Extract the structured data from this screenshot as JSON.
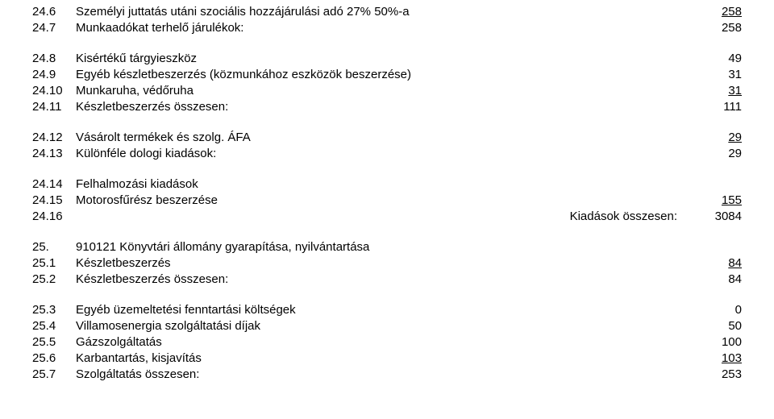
{
  "rows": [
    {
      "no": "24.6",
      "text": "Személyi juttatás utáni szociális hozzájárulási adó 27% 50%-a",
      "value": "258",
      "underline": true
    },
    {
      "no": "24.7",
      "text": "Munkaadókat terhelő járulékok:",
      "value": "258"
    },
    {
      "spacer": true
    },
    {
      "no": "24.8",
      "text": "Kisértékű tárgyieszköz",
      "value": "49"
    },
    {
      "no": "24.9",
      "text": "Egyéb készletbeszerzés (közmunkához eszközök beszerzése)",
      "value": "31"
    },
    {
      "no": "24.10",
      "text": "Munkaruha, védőruha",
      "value": "31",
      "underline": true
    },
    {
      "no": "24.11",
      "text": "Készletbeszerzés összesen:",
      "value": "111"
    },
    {
      "spacer": true
    },
    {
      "no": "24.12",
      "text": "Vásárolt termékek és szolg. ÁFA",
      "value": "29",
      "underline": true
    },
    {
      "no": "24.13",
      "text": "Különféle dologi kiadások:",
      "value": "29"
    },
    {
      "spacer": true
    },
    {
      "no": "24.14",
      "text": "Felhalmozási kiadások"
    },
    {
      "no": "24.15",
      "text": "Motorosfűrész beszerzése",
      "value": "155",
      "underline": true
    },
    {
      "no": "24.16",
      "text": "Kiadások összesen:",
      "align": "right",
      "value": "3084"
    },
    {
      "spacer": true
    },
    {
      "no": "25.",
      "text": "910121 Könyvtári állomány gyarapítása, nyilvántartása"
    },
    {
      "no": "25.1",
      "text": "Készletbeszerzés",
      "value": "84",
      "underline": true
    },
    {
      "no": "25.2",
      "text": "Készletbeszerzés összesen:",
      "value": "84"
    },
    {
      "spacer": true
    },
    {
      "no": "25.3",
      "text": "Egyéb üzemeltetési fenntartási költségek",
      "value": "0"
    },
    {
      "no": "25.4",
      "text": "Villamosenergia szolgáltatási díjak",
      "value": "50"
    },
    {
      "no": "25.5",
      "text": "Gázszolgáltatás",
      "value": "100"
    },
    {
      "no": "25.6",
      "text": "Karbantartás, kisjavítás",
      "value": "103",
      "underline": true
    },
    {
      "no": "25.7",
      "text": "Szolgáltatás összesen:",
      "value": "253"
    }
  ]
}
